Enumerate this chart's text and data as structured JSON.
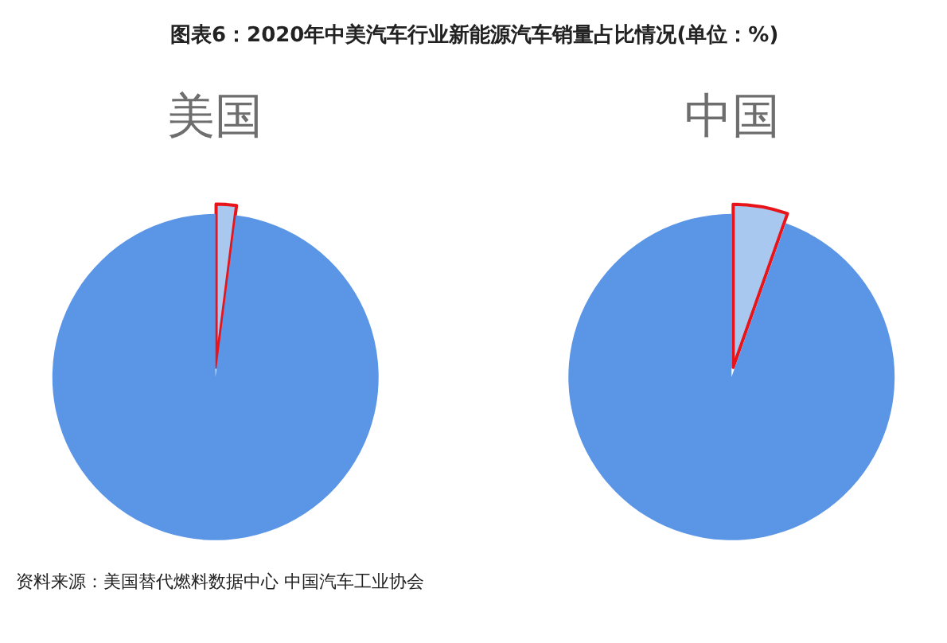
{
  "chart_data": [
    {
      "type": "pie",
      "title": "美国",
      "categories": [
        null,
        null
      ],
      "values": [
        2,
        98
      ],
      "colors": [
        "#a9c8f0",
        "#5b96e6"
      ],
      "annotations": [
        "图表6：2020年中美汽车行业新能源汽车销量占比情况(单位：%)",
        "资料来源：美国替代燃料数据中心 中国汽车工业协会"
      ]
    },
    {
      "type": "pie",
      "title": "中国",
      "categories": [
        null,
        null
      ],
      "values": [
        5.4,
        94.6
      ],
      "colors": [
        "#a9c8f0",
        "#5b96e6"
      ]
    }
  ]
}
